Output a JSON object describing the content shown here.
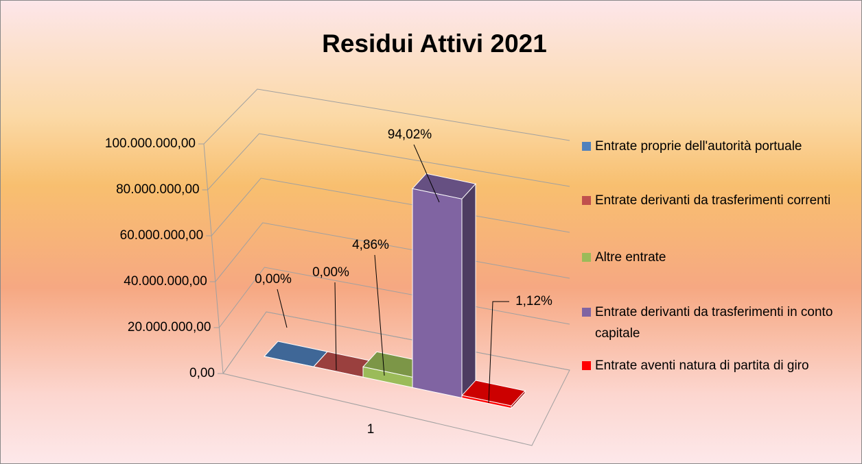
{
  "chart_data": {
    "type": "bar3d",
    "title": "Residui Attivi 2021",
    "categories": [
      "1"
    ],
    "series": [
      {
        "name": "Entrate proprie dell'autorità portuale",
        "color": "#4f81bd",
        "values": [
          0
        ],
        "value_labels": [
          "0,00%"
        ]
      },
      {
        "name": "Entrate derivanti da trasferimenti correnti",
        "color": "#c0504d",
        "values": [
          0
        ],
        "value_labels": [
          "0,00%"
        ]
      },
      {
        "name": "Altre entrate",
        "color": "#9bbb59",
        "values": [
          4030000
        ],
        "value_labels": [
          "4,86%"
        ]
      },
      {
        "name": "Entrate derivanti da trasferimenti in conto capitale",
        "color": "#8064a2",
        "values": [
          78000000
        ],
        "value_labels": [
          "94,02%"
        ]
      },
      {
        "name": "Entrate aventi natura di partita di giro",
        "color": "#ff0000",
        "values": [
          930000
        ],
        "value_labels": [
          "1,12%"
        ]
      }
    ],
    "ylim": [
      0,
      100000000
    ],
    "yticks": [
      {
        "value": 0,
        "label": "0,00"
      },
      {
        "value": 20000000,
        "label": "20.000.000,00"
      },
      {
        "value": 40000000,
        "label": "40.000.000,00"
      },
      {
        "value": 60000000,
        "label": "60.000.000,00"
      },
      {
        "value": 80000000,
        "label": "80.000.000,00"
      },
      {
        "value": 100000000,
        "label": "100.000.000,00"
      }
    ],
    "grid": true,
    "legend": "right"
  }
}
